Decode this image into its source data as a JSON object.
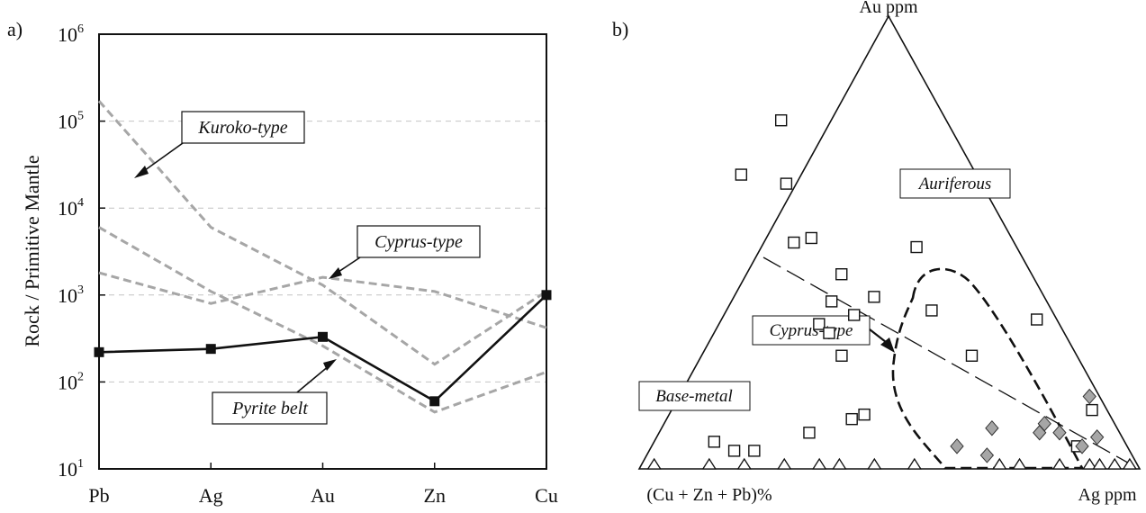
{
  "figure": {
    "panel_a_label": "a)",
    "panel_b_label": "b)"
  },
  "chart_data": [
    {
      "type": "line",
      "panel": "a)",
      "categories": [
        "Pb",
        "Ag",
        "Au",
        "Zn",
        "Cu"
      ],
      "ylabel": "Rock / Primitive Mantle",
      "xlabel": "",
      "yscale": "log",
      "ylim": [
        10,
        1000000
      ],
      "ytick_labels": [
        {
          "base": "10",
          "exp": "1",
          "value": 10
        },
        {
          "base": "10",
          "exp": "2",
          "value": 100
        },
        {
          "base": "10",
          "exp": "3",
          "value": 1000
        },
        {
          "base": "10",
          "exp": "4",
          "value": 10000
        },
        {
          "base": "10",
          "exp": "5",
          "value": 100000
        },
        {
          "base": "10",
          "exp": "6",
          "value": 1000000
        }
      ],
      "grid": "horizontal dashed at each decade",
      "series": [
        {
          "name": "Pyrite belt",
          "style": "solid black with square markers",
          "color": "#111111",
          "values": [
            220,
            240,
            330,
            60,
            1000
          ]
        },
        {
          "name": "Kuroko-type",
          "style": "dashed grey",
          "color": "#a6a6a6",
          "values": [
            170000,
            6000,
            1300,
            160,
            1100
          ]
        },
        {
          "name": "Cyprus-type",
          "style": "dashed grey",
          "color": "#a6a6a6",
          "values": [
            1800,
            800,
            1600,
            1100,
            420
          ]
        },
        {
          "name": "",
          "style": "dashed grey",
          "color": "#a6a6a6",
          "values": [
            6000,
            1100,
            260,
            45,
            130
          ]
        }
      ],
      "annotations": [
        {
          "text": "Kuroko-type",
          "italic": true,
          "boxed": true
        },
        {
          "text": "Cyprus-type",
          "italic": true,
          "boxed": true
        },
        {
          "text": "Pyrite belt",
          "italic": true,
          "boxed": true
        }
      ]
    },
    {
      "type": "scatter",
      "subtype": "ternary",
      "panel": "b)",
      "vertices": {
        "top": "Au ppm",
        "left": "(Cu + Zn + Pb)%",
        "right": "Ag ppm"
      },
      "fields": [
        "Auriferous",
        "Base-metal"
      ],
      "annotations": [
        {
          "text": "Cyprus-type",
          "italic": true,
          "boxed": true
        }
      ],
      "series": [
        {
          "name": "",
          "marker": "open square",
          "color": "#111111",
          "points": [
            {
              "base": 0.1,
              "au": 0.05
            },
            {
              "base": 0.82,
              "au": 0.06
            },
            {
              "base": 0.79,
              "au": 0.04
            },
            {
              "base": 0.75,
              "au": 0.04
            },
            {
              "base": 0.62,
              "au": 0.08
            },
            {
              "base": 0.52,
              "au": 0.11
            },
            {
              "base": 0.49,
              "au": 0.12
            },
            {
              "base": 0.48,
              "au": 0.32
            },
            {
              "base": 0.38,
              "au": 0.43
            },
            {
              "base": 0.34,
              "au": 0.38
            },
            {
              "base": 0.24,
              "au": 0.35
            },
            {
              "base": 0.47,
              "au": 0.25
            },
            {
              "base": 0.43,
              "au": 0.37
            },
            {
              "base": 0.21,
              "au": 0.25
            },
            {
              "base": 0.44,
              "au": 0.5
            },
            {
              "base": 0.47,
              "au": 0.3
            },
            {
              "base": 0.2,
              "au": 0.49
            },
            {
              "base": 0.4,
              "au": 0.34
            },
            {
              "base": 0.33,
              "au": 0.77
            },
            {
              "base": 0.39,
              "au": 0.63
            },
            {
              "base": 0.47,
              "au": 0.65
            },
            {
              "base": 0.4,
              "au": 0.51
            },
            {
              "base": 0.03,
              "au": 0.13
            },
            {
              "base": 0.04,
              "au": 0.33
            }
          ]
        },
        {
          "name": "",
          "marker": "grey diamond",
          "color": "#a6a6a6",
          "points": [
            {
              "base": 0.02,
              "au": 0.16
            },
            {
              "base": 0.05,
              "au": 0.07
            },
            {
              "base": 0.09,
              "au": 0.05
            },
            {
              "base": 0.12,
              "au": 0.08
            },
            {
              "base": 0.14,
              "au": 0.1
            },
            {
              "base": 0.16,
              "au": 0.08
            },
            {
              "base": 0.25,
              "au": 0.09
            },
            {
              "base": 0.29,
              "au": 0.03
            },
            {
              "base": 0.34,
              "au": 0.05
            }
          ]
        },
        {
          "name": "",
          "marker": "open triangle",
          "color": "#111111",
          "points": [
            {
              "base": 0.97,
              "au": 0.0
            },
            {
              "base": 0.86,
              "au": 0.0
            },
            {
              "base": 0.79,
              "au": 0.0
            },
            {
              "base": 0.71,
              "au": 0.0
            },
            {
              "base": 0.64,
              "au": 0.0
            },
            {
              "base": 0.6,
              "au": 0.0
            },
            {
              "base": 0.53,
              "au": 0.0
            },
            {
              "base": 0.45,
              "au": 0.0
            },
            {
              "base": 0.28,
              "au": 0.0
            },
            {
              "base": 0.24,
              "au": 0.0
            },
            {
              "base": 0.16,
              "au": 0.0
            },
            {
              "base": 0.1,
              "au": 0.0
            },
            {
              "base": 0.08,
              "au": 0.0
            },
            {
              "base": 0.05,
              "au": 0.0
            },
            {
              "base": 0.02,
              "au": 0.0
            }
          ]
        }
      ]
    }
  ]
}
